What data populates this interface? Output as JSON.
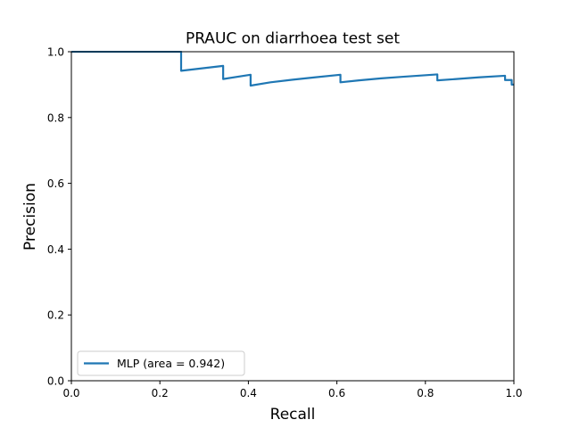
{
  "chart_data": {
    "type": "line",
    "title": "PRAUC on diarrhoea test set",
    "xlabel": "Recall",
    "ylabel": "Precision",
    "xlim": [
      0.0,
      1.0
    ],
    "ylim": [
      0.0,
      1.0
    ],
    "xticks": [
      "0.0",
      "0.2",
      "0.4",
      "0.6",
      "0.8",
      "1.0"
    ],
    "yticks": [
      "0.0",
      "0.2",
      "0.4",
      "0.6",
      "0.8",
      "1.0"
    ],
    "grid": false,
    "legend_position": "lower-left",
    "series": [
      {
        "name": "MLP (area = 0.942)",
        "color": "#1f77b4",
        "x": [
          0.0,
          0.248,
          0.248,
          0.343,
          0.343,
          0.405,
          0.405,
          0.45,
          0.5,
          0.55,
          0.608,
          0.608,
          0.65,
          0.7,
          0.75,
          0.827,
          0.827,
          0.87,
          0.92,
          0.98,
          0.98,
          0.995,
          0.995,
          1.0
        ],
        "y": [
          1.0,
          1.0,
          0.942,
          0.957,
          0.917,
          0.93,
          0.897,
          0.907,
          0.915,
          0.922,
          0.93,
          0.907,
          0.913,
          0.919,
          0.924,
          0.931,
          0.913,
          0.917,
          0.922,
          0.927,
          0.914,
          0.914,
          0.9,
          0.9
        ]
      }
    ]
  }
}
